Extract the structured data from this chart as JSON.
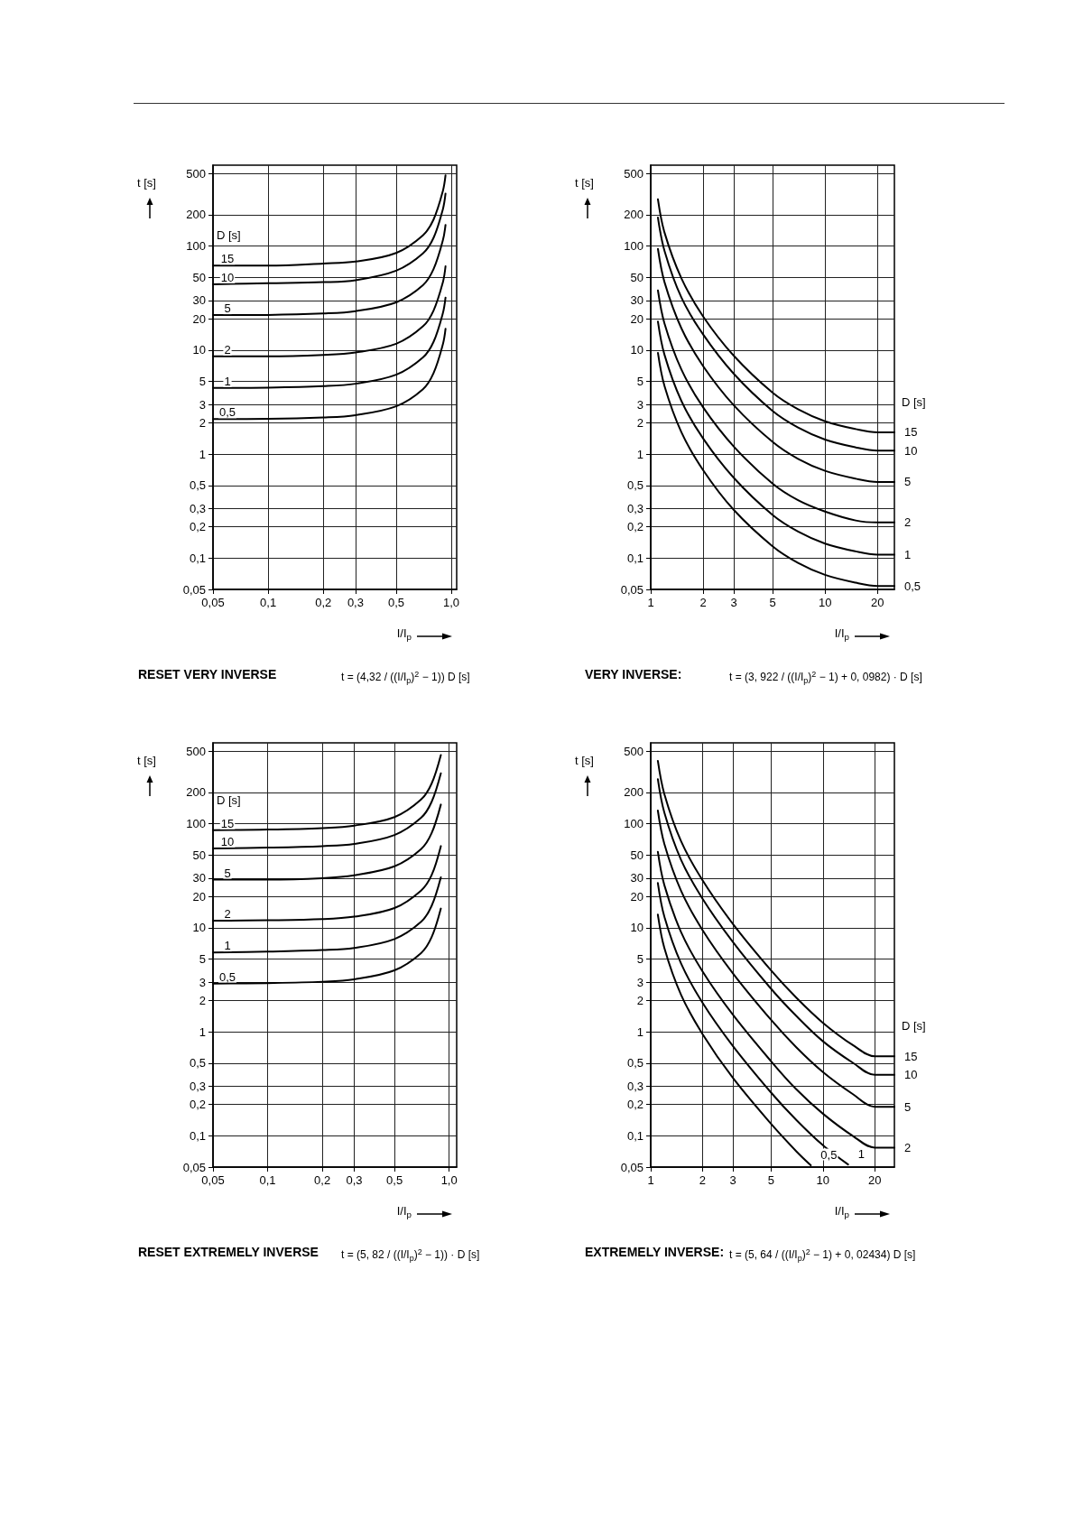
{
  "chart_data": [
    {
      "type": "line",
      "title": "RESET VERY INVERSE",
      "xlabel": "I/I$_{p}$",
      "ylabel": "t [s]",
      "legend_title": "D [s]",
      "log": "xy",
      "grid": true,
      "annotations": [
        "t = (4,32 / ((I/I$_{p}$)$^{2}$ − 1)) D [s]"
      ],
      "xlim": [
        0.05,
        1.07
      ],
      "xticks": [
        {
          "value": 0.05,
          "label": "0,05"
        },
        {
          "value": 0.1,
          "label": "0,1"
        },
        {
          "value": 0.2,
          "label": "0,2"
        },
        {
          "value": 0.3,
          "label": "0,3"
        },
        {
          "value": 0.5,
          "label": "0,5"
        },
        {
          "value": 1,
          "label": "1,0"
        }
      ],
      "ylim": [
        0.05,
        600
      ],
      "yticks": [
        500,
        200,
        100,
        50,
        30,
        20,
        10,
        5,
        3,
        2,
        1,
        {
          "value": 0.5,
          "label": "0,5"
        },
        {
          "value": 0.3,
          "label": "0,3"
        },
        {
          "value": 0.2,
          "label": "0,2"
        },
        {
          "value": 0.1,
          "label": "0,1"
        },
        {
          "value": 0.05,
          "label": "0,05"
        }
      ],
      "x": [
        0.05,
        0.1,
        0.2,
        0.3,
        0.5,
        0.7,
        0.8,
        0.9,
        0.93
      ],
      "series": [
        {
          "name": "15",
          "color": "#000000",
          "values": [
            65,
            65,
            68,
            71,
            86,
            127,
            180,
            340,
            480
          ]
        },
        {
          "name": "10",
          "color": "#000000",
          "values": [
            43,
            44,
            45,
            47,
            58,
            85,
            120,
            227,
            320
          ]
        },
        {
          "name": "5",
          "color": "#000000",
          "values": [
            21.7,
            21.8,
            22.5,
            23.7,
            28.8,
            42,
            60,
            114,
            160
          ]
        },
        {
          "name": "2",
          "color": "#000000",
          "values": [
            8.7,
            8.7,
            9.0,
            9.5,
            11.5,
            16.9,
            24,
            45,
            64
          ]
        },
        {
          "name": "1",
          "color": "#000000",
          "values": [
            4.33,
            4.36,
            4.5,
            4.75,
            5.8,
            8.5,
            12.0,
            22.7,
            32
          ]
        },
        {
          "name": "0,5",
          "color": "#000000",
          "values": [
            2.17,
            2.18,
            2.25,
            2.37,
            2.88,
            4.2,
            6.0,
            11.4,
            16.0
          ]
        }
      ]
    },
    {
      "type": "line",
      "title": "VERY INVERSE:",
      "xlabel": "I/I$_{p}$",
      "ylabel": "t [s]",
      "legend_title": "D [s]",
      "log": "xy",
      "grid": true,
      "annotations": [
        "t = (3, 922 / ((I/I$_{p}$)$^{2}$ − 1) + 0, 0982) · D [s]"
      ],
      "xlim": [
        1,
        25
      ],
      "xticks": [
        1,
        2,
        3,
        5,
        10,
        20
      ],
      "ylim": [
        0.05,
        600
      ],
      "yticks": [
        500,
        200,
        100,
        50,
        30,
        20,
        10,
        5,
        3,
        2,
        1,
        {
          "value": 0.5,
          "label": "0,5"
        },
        {
          "value": 0.3,
          "label": "0,3"
        },
        {
          "value": 0.2,
          "label": "0,2"
        },
        {
          "value": 0.1,
          "label": "0,1"
        },
        {
          "value": 0.05,
          "label": "0,05"
        }
      ],
      "x": [
        1.1,
        1.2,
        1.5,
        2,
        3,
        5,
        7,
        10,
        15,
        20,
        25
      ],
      "series": [
        {
          "name": "15",
          "color": "#000000",
          "values": [
            282,
            135,
            49,
            21,
            8.8,
            3.9,
            2.7,
            2.07,
            1.74,
            1.62,
            1.62
          ]
        },
        {
          "name": "10",
          "color": "#000000",
          "values": [
            188,
            90,
            32,
            14.1,
            5.9,
            2.6,
            1.8,
            1.38,
            1.16,
            1.08,
            1.08
          ]
        },
        {
          "name": "5",
          "color": "#000000",
          "values": [
            94,
            45,
            16.2,
            7.0,
            2.94,
            1.31,
            0.9,
            0.69,
            0.58,
            0.54,
            0.54
          ]
        },
        {
          "name": "2",
          "color": "#000000",
          "values": [
            37.5,
            18.0,
            6.5,
            2.81,
            1.18,
            0.52,
            0.36,
            0.28,
            0.23,
            0.22,
            0.22
          ]
        },
        {
          "name": "1",
          "color": "#000000",
          "values": [
            18.8,
            9.0,
            3.24,
            1.41,
            0.59,
            0.26,
            0.18,
            0.138,
            0.116,
            0.108,
            0.108
          ]
        },
        {
          "name": "0,5",
          "color": "#000000",
          "values": [
            9.4,
            4.5,
            1.62,
            0.7,
            0.29,
            0.13,
            0.09,
            0.069,
            0.058,
            0.054,
            0.054
          ]
        }
      ]
    },
    {
      "type": "line",
      "title": "RESET EXTREMELY INVERSE",
      "xlabel": "I/I$_{p}$",
      "ylabel": "t [s]",
      "legend_title": "D [s]",
      "log": "xy",
      "grid": true,
      "annotations": [
        "t = (5, 82 / ((I/I$_{p}$)$^{2}$ − 1)) · D [s]"
      ],
      "xlim": [
        0.05,
        1.1
      ],
      "xticks": [
        {
          "value": 0.05,
          "label": "0,05"
        },
        {
          "value": 0.1,
          "label": "0,1"
        },
        {
          "value": 0.2,
          "label": "0,2"
        },
        {
          "value": 0.3,
          "label": "0,3"
        },
        {
          "value": 0.5,
          "label": "0,5"
        },
        {
          "value": 1,
          "label": "1,0"
        }
      ],
      "ylim": [
        0.05,
        600
      ],
      "yticks": [
        500,
        200,
        100,
        50,
        30,
        20,
        10,
        5,
        3,
        2,
        1,
        {
          "value": 0.5,
          "label": "0,5"
        },
        {
          "value": 0.3,
          "label": "0,3"
        },
        {
          "value": 0.2,
          "label": "0,2"
        },
        {
          "value": 0.1,
          "label": "0,1"
        },
        {
          "value": 0.05,
          "label": "0,05"
        }
      ],
      "x": [
        0.05,
        0.1,
        0.2,
        0.3,
        0.5,
        0.7,
        0.8,
        0.9
      ],
      "series": [
        {
          "name": "15",
          "color": "#000000",
          "values": [
            87,
            88,
            91,
            96,
            116,
            171,
            243,
            459
          ]
        },
        {
          "name": "10",
          "color": "#000000",
          "values": [
            58,
            59,
            61,
            64,
            78,
            114,
            162,
            306
          ]
        },
        {
          "name": "5",
          "color": "#000000",
          "values": [
            29,
            29,
            30,
            32,
            39,
            57,
            81,
            153
          ]
        },
        {
          "name": "2",
          "color": "#000000",
          "values": [
            11.7,
            11.8,
            12.1,
            12.8,
            15.5,
            22.8,
            32,
            61
          ]
        },
        {
          "name": "1",
          "color": "#000000",
          "values": [
            5.8,
            5.9,
            6.1,
            6.4,
            7.8,
            11.4,
            16.2,
            30.6
          ]
        },
        {
          "name": "0,5",
          "color": "#000000",
          "values": [
            2.91,
            2.94,
            3.03,
            3.2,
            3.9,
            5.7,
            8.1,
            15.3
          ]
        }
      ]
    },
    {
      "type": "line",
      "title": "EXTREMELY INVERSE:",
      "xlabel": "I/I$_{p}$",
      "ylabel": "t [s]",
      "legend_title": "D [s]",
      "log": "xy",
      "grid": true,
      "annotations": [
        "t = (5, 64 / ((I/I$_{p}$)$^{2}$ − 1) + 0, 02434) D [s]"
      ],
      "xlim": [
        1,
        26
      ],
      "xticks": [
        1,
        2,
        3,
        5,
        10,
        20
      ],
      "ylim": [
        0.05,
        600
      ],
      "yticks": [
        500,
        200,
        100,
        50,
        30,
        20,
        10,
        5,
        3,
        2,
        1,
        {
          "value": 0.5,
          "label": "0,5"
        },
        {
          "value": 0.3,
          "label": "0,3"
        },
        {
          "value": 0.2,
          "label": "0,2"
        },
        {
          "value": 0.1,
          "label": "0,1"
        },
        {
          "value": 0.05,
          "label": "0,05"
        }
      ],
      "x": [
        1.1,
        1.2,
        1.5,
        2,
        3,
        5,
        7,
        10,
        15,
        20,
        26
      ],
      "series": [
        {
          "name": "15",
          "color": "#000000",
          "values": [
            403,
            193,
            68,
            28.6,
            10.9,
            3.89,
            2.13,
            1.22,
            0.74,
            0.58,
            0.58
          ]
        },
        {
          "name": "10",
          "color": "#000000",
          "values": [
            269,
            128,
            45,
            19.0,
            7.3,
            2.59,
            1.42,
            0.81,
            0.5,
            0.385,
            0.385
          ]
        },
        {
          "name": "5",
          "color": "#000000",
          "values": [
            134,
            64,
            22.7,
            9.5,
            3.65,
            1.3,
            0.71,
            0.41,
            0.25,
            0.19,
            0.19
          ]
        },
        {
          "name": "2",
          "color": "#000000",
          "values": [
            53.8,
            25.7,
            9.1,
            3.81,
            1.46,
            0.52,
            0.28,
            0.163,
            0.099,
            0.077,
            0.077
          ]
        },
        {
          "name": "1",
          "color": "#000000",
          "x": [
            1.1,
            1.2,
            1.5,
            2,
            3,
            5,
            7,
            10,
            14
          ],
          "values": [
            26.9,
            12.8,
            4.54,
            1.9,
            0.73,
            0.26,
            0.142,
            0.081,
            0.053
          ]
        },
        {
          "name": "0,5",
          "color": "#000000",
          "x": [
            1.1,
            1.2,
            1.5,
            2,
            3,
            5,
            7,
            8.5
          ],
          "values": [
            13.4,
            6.4,
            2.27,
            0.95,
            0.36,
            0.13,
            0.071,
            0.052
          ]
        }
      ]
    }
  ]
}
